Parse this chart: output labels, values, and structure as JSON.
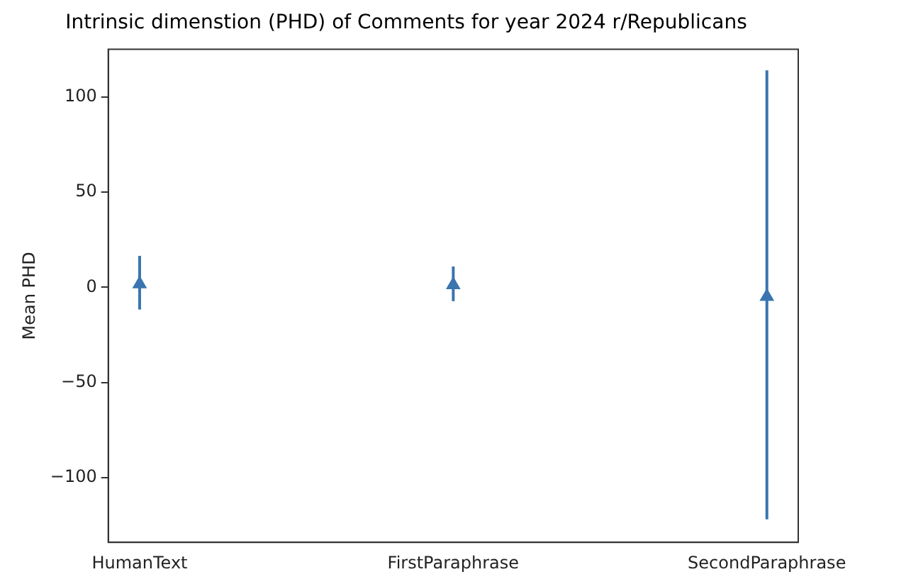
{
  "chart_data": {
    "type": "scatter",
    "title": "Intrinsic dimenstion (PHD) of Comments for year 2024 r/Republicans",
    "ylabel": "Mean PHD",
    "categories": [
      "HumanText",
      "FirstParaphrase",
      "SecondParaphrase"
    ],
    "series": [
      {
        "color": "#3a75b0",
        "values": [
          1.7,
          1.2,
          -4.9
        ],
        "errors": [
          [
            -11.7,
            16.5
          ],
          [
            -7.3,
            10.9
          ],
          [
            -121.9,
            114
          ]
        ]
      }
    ],
    "marker": "triangle",
    "ylim": [
      -134,
      125
    ],
    "yticks": [
      -100,
      -50,
      0,
      50,
      100
    ],
    "grid": false,
    "legend": false
  }
}
